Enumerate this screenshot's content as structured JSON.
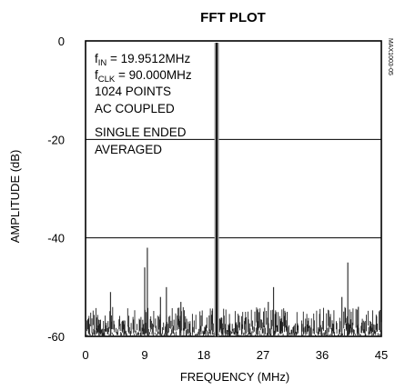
{
  "chart_data": {
    "type": "line",
    "title": "FFT PLOT",
    "xlabel": "FREQUENCY (MHz)",
    "ylabel": "AMPLITUDE (dB)",
    "xlim": [
      0,
      45
    ],
    "ylim": [
      -60,
      0
    ],
    "xticks": [
      "0",
      "9",
      "18",
      "27",
      "36",
      "45"
    ],
    "yticks": [
      "0",
      "-20",
      "-40",
      "-60"
    ],
    "grid_y_lines_at": [
      -20,
      -40
    ],
    "side_label": "MAX1003-05",
    "annotations": [
      {
        "id": "fin",
        "main": "f",
        "sub": "IN",
        "rest": " = 19.9512MHz"
      },
      {
        "id": "fclk",
        "main": "f",
        "sub": "CLK",
        "rest": " = 90.000MHz"
      },
      {
        "id": "points",
        "text": "1024 POINTS"
      },
      {
        "id": "coupling",
        "text": "AC COUPLED"
      },
      {
        "id": "input",
        "text": "SINGLE ENDED"
      },
      {
        "id": "avg",
        "text": "AVERAGED"
      }
    ],
    "fundamental": {
      "x": 19.95,
      "y": 0
    },
    "spurs": [
      {
        "x": 3.8,
        "y": -51
      },
      {
        "x": 9.0,
        "y": -46
      },
      {
        "x": 9.4,
        "y": -42
      },
      {
        "x": 11.4,
        "y": -52
      },
      {
        "x": 12.3,
        "y": -50
      },
      {
        "x": 14.5,
        "y": -53
      },
      {
        "x": 27.8,
        "y": -53
      },
      {
        "x": 28.6,
        "y": -50
      },
      {
        "x": 39.0,
        "y": -52
      },
      {
        "x": 39.9,
        "y": -45
      },
      {
        "x": 41.5,
        "y": -54
      }
    ],
    "noise_floor": {
      "min": -60,
      "max": -54
    }
  }
}
